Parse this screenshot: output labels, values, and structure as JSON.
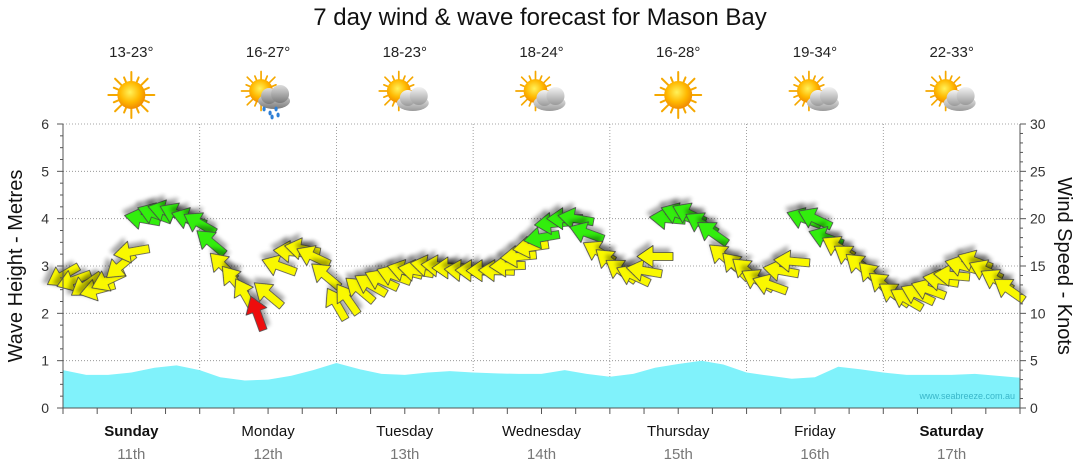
{
  "colors": {
    "wave_fill": "#80f2fb",
    "wind_light": "#f9f800",
    "wind_moderate": "#33ee11",
    "wind_strong": "#ee1111",
    "grid": "#888888"
  },
  "chart_data": {
    "type": "area",
    "title": "7 day wind & wave forecast for Mason Bay",
    "ylabel": "Wave Height - Metres",
    "y2label": "Wind Speed - Knots",
    "ylim": [
      0,
      6
    ],
    "y2lim": [
      0,
      30
    ],
    "yticks": [
      "0",
      "1",
      "2",
      "3",
      "4",
      "5",
      "6"
    ],
    "y2ticks": [
      "0",
      "5",
      "10",
      "15",
      "20",
      "25",
      "30"
    ],
    "watermark": "www.seabreeze.com.au",
    "days": [
      {
        "day": "Sunday",
        "date": "11th",
        "bold": true,
        "temp": "13-23°",
        "weather": "sunny-icon"
      },
      {
        "day": "Monday",
        "date": "12th",
        "bold": false,
        "temp": "16-27°",
        "weather": "rain-shower-icon"
      },
      {
        "day": "Tuesday",
        "date": "13th",
        "bold": false,
        "temp": "18-23°",
        "weather": "partly-cloudy-icon"
      },
      {
        "day": "Wednesday",
        "date": "14th",
        "bold": false,
        "temp": "18-24°",
        "weather": "partly-cloudy-icon"
      },
      {
        "day": "Thursday",
        "date": "15th",
        "bold": false,
        "temp": "16-28°",
        "weather": "sunny-icon"
      },
      {
        "day": "Friday",
        "date": "16th",
        "bold": false,
        "temp": "19-34°",
        "weather": "partly-cloudy-icon"
      },
      {
        "day": "Saturday",
        "date": "17th",
        "bold": true,
        "temp": "22-33°",
        "weather": "partly-cloudy-icon"
      }
    ],
    "wave_series": {
      "name": "Wave Height",
      "x_days": [
        0,
        0.17,
        0.33,
        0.5,
        0.67,
        0.83,
        1.0,
        1.15,
        1.33,
        1.5,
        1.67,
        1.83,
        2.0,
        2.17,
        2.33,
        2.5,
        2.67,
        2.83,
        3.0,
        3.17,
        3.33,
        3.5,
        3.67,
        3.83,
        4.0,
        4.17,
        4.33,
        4.5,
        4.67,
        4.83,
        5.0,
        5.17,
        5.33,
        5.5,
        5.67,
        5.83,
        6.0,
        6.17,
        6.33,
        6.5,
        6.67,
        6.83,
        7.0
      ],
      "values": [
        0.8,
        0.7,
        0.7,
        0.75,
        0.85,
        0.9,
        0.8,
        0.65,
        0.58,
        0.6,
        0.68,
        0.8,
        0.95,
        0.82,
        0.72,
        0.7,
        0.75,
        0.78,
        0.75,
        0.73,
        0.72,
        0.72,
        0.8,
        0.72,
        0.66,
        0.72,
        0.85,
        0.93,
        1.0,
        0.92,
        0.75,
        0.68,
        0.62,
        0.65,
        0.87,
        0.82,
        0.75,
        0.7,
        0.7,
        0.7,
        0.72,
        0.68,
        0.64
      ]
    },
    "wind_series": {
      "name": "Wind Speed",
      "x_days": [
        0.0,
        0.08,
        0.17,
        0.25,
        0.33,
        0.42,
        0.5,
        0.58,
        0.67,
        0.75,
        0.83,
        0.92,
        1.0,
        1.08,
        1.17,
        1.25,
        1.33,
        1.42,
        1.5,
        1.58,
        1.67,
        1.75,
        1.83,
        1.92,
        2.0,
        2.08,
        2.17,
        2.25,
        2.33,
        2.42,
        2.5,
        2.58,
        2.67,
        2.75,
        2.83,
        2.92,
        3.0,
        3.08,
        3.17,
        3.25,
        3.33,
        3.42,
        3.5,
        3.58,
        3.67,
        3.75,
        3.83,
        3.92,
        4.0,
        4.08,
        4.17,
        4.25,
        4.33,
        4.42,
        4.5,
        4.58,
        4.67,
        4.75,
        4.83,
        4.92,
        5.0,
        5.08,
        5.17,
        5.25,
        5.33,
        5.42,
        5.5,
        5.58,
        5.67,
        5.75,
        5.83,
        5.92,
        6.0,
        6.08,
        6.17,
        6.25,
        6.33,
        6.42,
        6.5,
        6.58,
        6.67,
        6.75,
        6.83,
        6.92
      ],
      "values": [
        14,
        13.5,
        13,
        12.5,
        13.5,
        15,
        16.5,
        20,
        20.5,
        20.8,
        20.5,
        20,
        19.5,
        17.5,
        15,
        13.5,
        12,
        10,
        12,
        15,
        16.5,
        16.8,
        16,
        14,
        11,
        11.5,
        12.5,
        13,
        13.5,
        14,
        14.5,
        14.5,
        15,
        15,
        14.8,
        14.5,
        14.5,
        14.5,
        14.5,
        15,
        16,
        17,
        18,
        19.5,
        20,
        20,
        18.5,
        16.5,
        15.5,
        14.5,
        14,
        14.5,
        16,
        20,
        20.5,
        20.5,
        19.5,
        18.5,
        16,
        15,
        14.5,
        13.5,
        13,
        14.5,
        15.5,
        20,
        20,
        18,
        17,
        16,
        15,
        14,
        13,
        12,
        11.5,
        12,
        12.5,
        13.5,
        14,
        15,
        15.5,
        14.5,
        13.5,
        12.5
      ],
      "direction_deg": [
        60,
        70,
        55,
        75,
        65,
        50,
        80,
        100,
        110,
        105,
        115,
        108,
        120,
        130,
        135,
        140,
        150,
        160,
        130,
        110,
        95,
        100,
        115,
        130,
        150,
        145,
        130,
        120,
        115,
        110,
        105,
        100,
        100,
        95,
        90,
        95,
        92,
        90,
        92,
        88,
        85,
        82,
        80,
        85,
        90,
        100,
        110,
        120,
        130,
        125,
        115,
        100,
        90,
        95,
        110,
        115,
        120,
        125,
        130,
        135,
        130,
        120,
        110,
        100,
        95,
        110,
        115,
        110,
        120,
        125,
        130,
        135,
        130,
        125,
        120,
        115,
        110,
        100,
        95,
        105,
        110,
        115,
        120,
        125
      ]
    }
  }
}
